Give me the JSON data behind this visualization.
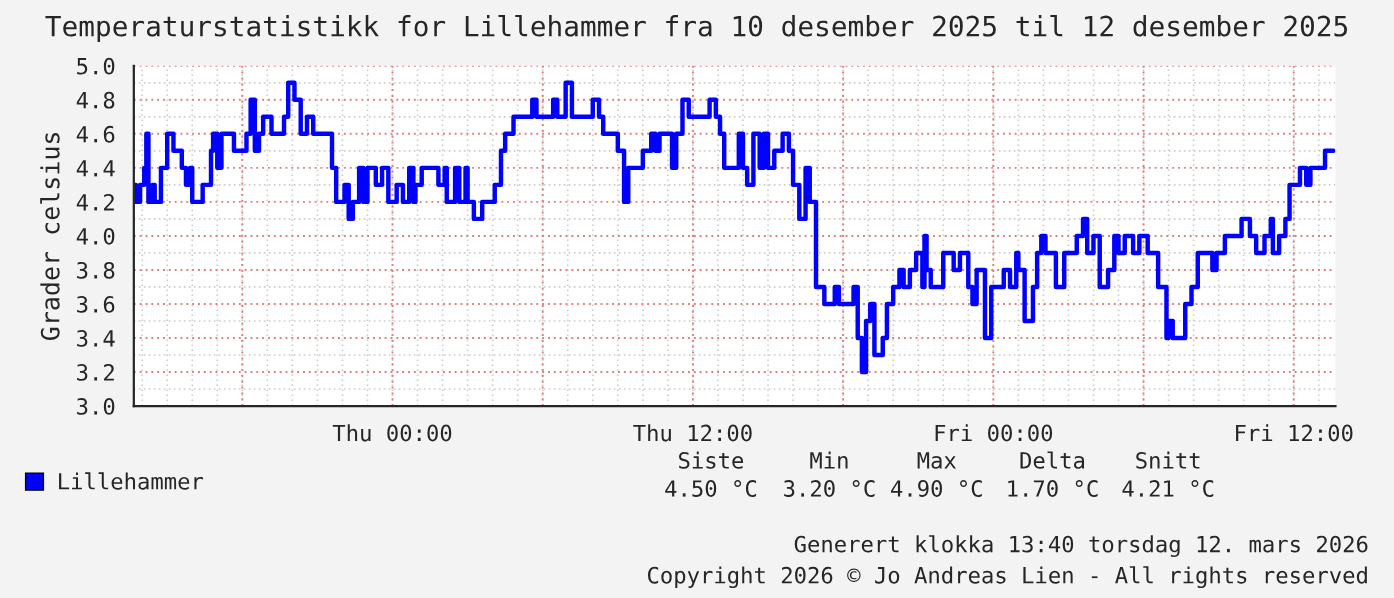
{
  "chart_data": {
    "type": "step",
    "title": "Temperaturstatistikk for Lillehammer fra 10 desember 2025 til 12 desember 2025",
    "ylabel": "Grader celsius",
    "xlim": [
      "2025-12-10T13:40",
      "2025-12-12T13:40"
    ],
    "xticks": [
      {
        "value": "2025-12-10T18:00",
        "label": null
      },
      {
        "value": "2025-12-11T00:00",
        "label": "Thu 00:00"
      },
      {
        "value": "2025-12-11T06:00",
        "label": null
      },
      {
        "value": "2025-12-11T12:00",
        "label": "Thu 12:00"
      },
      {
        "value": "2025-12-11T18:00",
        "label": null
      },
      {
        "value": "2025-12-12T00:00",
        "label": "Fri 00:00"
      },
      {
        "value": "2025-12-12T06:00",
        "label": null
      },
      {
        "value": "2025-12-12T12:00",
        "label": "Fri 12:00"
      }
    ],
    "ylim": [
      3.0,
      5.0
    ],
    "yticks": [
      {
        "value": 3,
        "label": "3.0"
      },
      3.2,
      3.4,
      3.6,
      3.8,
      {
        "value": 4,
        "label": "4.0"
      },
      4.2,
      4.4,
      4.6,
      4.8,
      {
        "value": 5,
        "label": "5.0"
      }
    ],
    "grid": true,
    "legend": "bottom left",
    "marker": "none",
    "line_style": "solid",
    "annotations": [
      "Siste",
      "Min",
      "Max",
      "Delta",
      "Snitt",
      "4.50 °C",
      "3.20 °C",
      "4.90 °C",
      "1.70 °C",
      "4.21 °C",
      "Generert klokka 13:40 torsdag 12. mars 2026",
      "Copyright 2026 © Jo Andreas Lien - All rights reserved"
    ],
    "series": [
      {
        "name": "Lillehammer",
        "color": "#0000ff",
        "x": [
          "2025-12-10T13:40",
          "2025-12-10T13:45",
          "2025-12-10T13:55",
          "2025-12-10T14:05",
          "2025-12-10T14:10",
          "2025-12-10T14:15",
          "2025-12-10T14:25",
          "2025-12-10T14:30",
          "2025-12-10T14:45",
          "2025-12-10T15:00",
          "2025-12-10T15:15",
          "2025-12-10T15:35",
          "2025-12-10T15:45",
          "2025-12-10T15:55",
          "2025-12-10T16:00",
          "2025-12-10T16:25",
          "2025-12-10T16:45",
          "2025-12-10T16:50",
          "2025-12-10T17:00",
          "2025-12-10T17:10",
          "2025-12-10T17:40",
          "2025-12-10T18:10",
          "2025-12-10T18:20",
          "2025-12-10T18:30",
          "2025-12-10T18:40",
          "2025-12-10T18:50",
          "2025-12-10T19:10",
          "2025-12-10T19:40",
          "2025-12-10T19:50",
          "2025-12-10T20:05",
          "2025-12-10T20:20",
          "2025-12-10T20:35",
          "2025-12-10T20:50",
          "2025-12-10T21:35",
          "2025-12-10T21:45",
          "2025-12-10T22:05",
          "2025-12-10T22:15",
          "2025-12-10T22:25",
          "2025-12-10T22:40",
          "2025-12-10T22:50",
          "2025-12-10T23:00",
          "2025-12-10T23:20",
          "2025-12-10T23:35",
          "2025-12-10T23:50",
          "2025-12-11T00:10",
          "2025-12-11T00:25",
          "2025-12-11T00:40",
          "2025-12-11T00:50",
          "2025-12-11T00:55",
          "2025-12-11T01:10",
          "2025-12-11T01:50",
          "2025-12-11T02:05",
          "2025-12-11T02:10",
          "2025-12-11T02:30",
          "2025-12-11T02:40",
          "2025-12-11T02:55",
          "2025-12-11T03:00",
          "2025-12-11T03:15",
          "2025-12-11T03:35",
          "2025-12-11T04:05",
          "2025-12-11T04:20",
          "2025-12-11T04:30",
          "2025-12-11T04:50",
          "2025-12-11T05:35",
          "2025-12-11T05:45",
          "2025-12-11T06:25",
          "2025-12-11T06:35",
          "2025-12-11T06:55",
          "2025-12-11T07:10",
          "2025-12-11T08:00",
          "2025-12-11T08:15",
          "2025-12-11T08:25",
          "2025-12-11T09:00",
          "2025-12-11T09:15",
          "2025-12-11T09:25",
          "2025-12-11T10:00",
          "2025-12-11T10:20",
          "2025-12-11T10:30",
          "2025-12-11T10:40",
          "2025-12-11T11:10",
          "2025-12-11T11:20",
          "2025-12-11T11:35",
          "2025-12-11T11:50",
          "2025-12-11T12:40",
          "2025-12-11T12:55",
          "2025-12-11T13:05",
          "2025-12-11T13:15",
          "2025-12-11T13:50",
          "2025-12-11T14:00",
          "2025-12-11T14:10",
          "2025-12-11T14:25",
          "2025-12-11T14:40",
          "2025-12-11T14:50",
          "2025-12-11T15:00",
          "2025-12-11T15:15",
          "2025-12-11T15:35",
          "2025-12-11T15:50",
          "2025-12-11T16:00",
          "2025-12-11T16:15",
          "2025-12-11T16:30",
          "2025-12-11T16:40",
          "2025-12-11T16:55",
          "2025-12-11T17:15",
          "2025-12-11T17:40",
          "2025-12-11T17:50",
          "2025-12-11T18:25",
          "2025-12-11T18:35",
          "2025-12-11T18:45",
          "2025-12-11T18:55",
          "2025-12-11T19:05",
          "2025-12-11T19:15",
          "2025-12-11T19:35",
          "2025-12-11T19:45",
          "2025-12-11T20:00",
          "2025-12-11T20:15",
          "2025-12-11T20:25",
          "2025-12-11T20:40",
          "2025-12-11T20:55",
          "2025-12-11T21:10",
          "2025-12-11T21:15",
          "2025-12-11T21:20",
          "2025-12-11T21:30",
          "2025-12-11T22:00",
          "2025-12-11T22:25",
          "2025-12-11T22:40",
          "2025-12-11T23:00",
          "2025-12-11T23:10",
          "2025-12-11T23:20",
          "2025-12-11T23:40",
          "2025-12-11T23:55",
          "2025-12-12T00:25",
          "2025-12-12T00:40",
          "2025-12-12T00:55",
          "2025-12-12T01:00",
          "2025-12-12T01:15",
          "2025-12-12T01:35",
          "2025-12-12T01:45",
          "2025-12-12T01:55",
          "2025-12-12T02:05",
          "2025-12-12T02:30",
          "2025-12-12T02:50",
          "2025-12-12T03:20",
          "2025-12-12T03:35",
          "2025-12-12T03:45",
          "2025-12-12T04:00",
          "2025-12-12T04:15",
          "2025-12-12T04:35",
          "2025-12-12T04:50",
          "2025-12-12T05:00",
          "2025-12-12T05:15",
          "2025-12-12T05:35",
          "2025-12-12T05:50",
          "2025-12-12T06:10",
          "2025-12-12T06:35",
          "2025-12-12T06:55",
          "2025-12-12T07:00",
          "2025-12-12T07:10",
          "2025-12-12T07:40",
          "2025-12-12T07:55",
          "2025-12-12T08:10",
          "2025-12-12T08:45",
          "2025-12-12T08:55",
          "2025-12-12T09:15",
          "2025-12-12T09:55",
          "2025-12-12T10:15",
          "2025-12-12T10:30",
          "2025-12-12T10:50",
          "2025-12-12T11:05",
          "2025-12-12T11:10",
          "2025-12-12T11:25",
          "2025-12-12T11:40",
          "2025-12-12T11:50",
          "2025-12-12T12:15",
          "2025-12-12T12:30",
          "2025-12-12T12:40",
          "2025-12-12T13:15",
          "2025-12-12T13:35"
        ],
        "values": [
          4.3,
          4.2,
          4.3,
          4.4,
          4.6,
          4.2,
          4.3,
          4.2,
          4.4,
          4.6,
          4.5,
          4.4,
          4.3,
          4.4,
          4.2,
          4.3,
          4.5,
          4.6,
          4.4,
          4.6,
          4.5,
          4.6,
          4.8,
          4.5,
          4.6,
          4.7,
          4.6,
          4.7,
          4.9,
          4.8,
          4.6,
          4.7,
          4.6,
          4.4,
          4.2,
          4.3,
          4.1,
          4.2,
          4.4,
          4.2,
          4.4,
          4.3,
          4.4,
          4.2,
          4.3,
          4.2,
          4.4,
          4.2,
          4.3,
          4.4,
          4.3,
          4.4,
          4.2,
          4.4,
          4.2,
          4.4,
          4.2,
          4.1,
          4.2,
          4.3,
          4.5,
          4.6,
          4.7,
          4.8,
          4.7,
          4.8,
          4.7,
          4.9,
          4.7,
          4.8,
          4.7,
          4.6,
          4.5,
          4.2,
          4.4,
          4.5,
          4.6,
          4.5,
          4.6,
          4.4,
          4.6,
          4.8,
          4.7,
          4.8,
          4.7,
          4.6,
          4.4,
          4.6,
          4.4,
          4.3,
          4.6,
          4.4,
          4.6,
          4.4,
          4.5,
          4.6,
          4.5,
          4.3,
          4.1,
          4.4,
          4.2,
          3.7,
          3.6,
          3.7,
          3.6,
          3.7,
          3.4,
          3.2,
          3.5,
          3.6,
          3.3,
          3.4,
          3.6,
          3.7,
          3.8,
          3.7,
          3.8,
          3.9,
          3.7,
          4.0,
          3.8,
          3.7,
          3.9,
          3.8,
          3.9,
          3.7,
          3.6,
          3.8,
          3.4,
          3.7,
          3.8,
          3.7,
          3.9,
          3.8,
          3.5,
          3.7,
          3.9,
          4.0,
          3.9,
          3.7,
          3.9,
          4.0,
          4.1,
          3.9,
          4.0,
          3.7,
          3.8,
          4.0,
          3.9,
          4.0,
          3.9,
          4.0,
          3.9,
          3.7,
          3.4,
          3.5,
          3.4,
          3.6,
          3.7,
          3.9,
          3.8,
          3.9,
          4.0,
          4.1,
          4.0,
          3.9,
          4.0,
          4.1,
          3.9,
          4.0,
          4.1,
          4.3,
          4.4,
          4.3,
          4.4,
          4.5,
          4.5
        ]
      }
    ]
  }
}
